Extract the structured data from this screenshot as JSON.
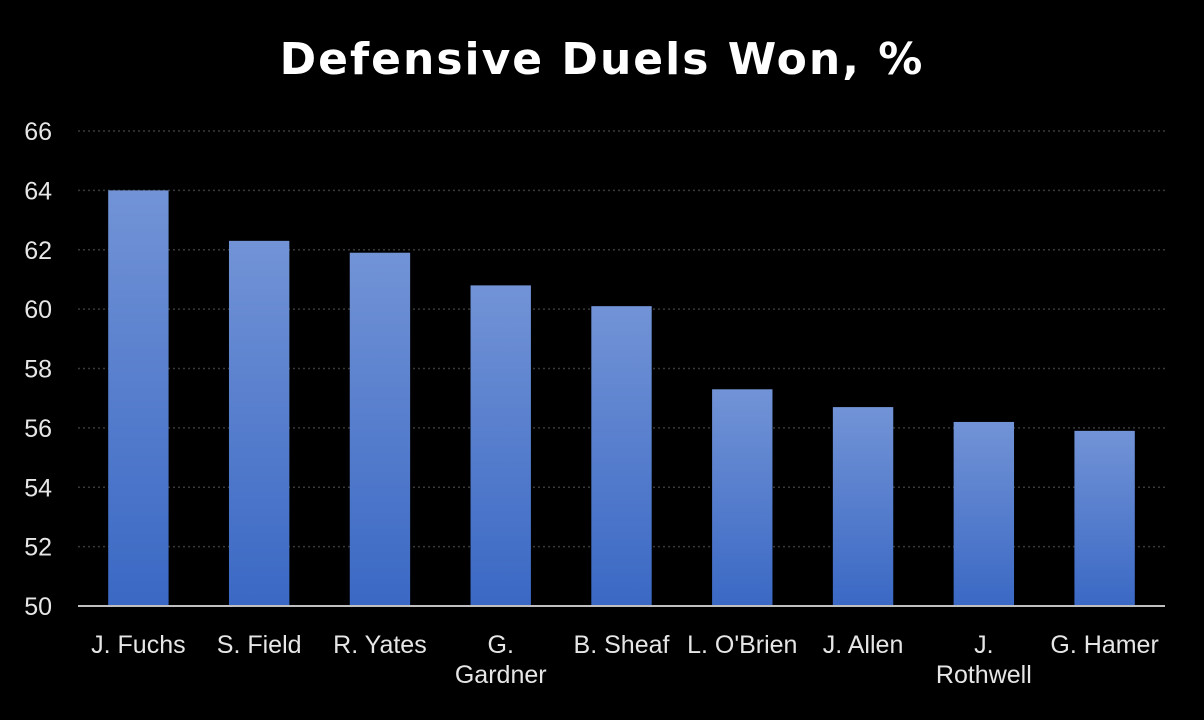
{
  "chart_data": {
    "type": "bar",
    "title": "Defensive Duels Won, %",
    "xlabel": "",
    "ylabel": "",
    "categories": [
      "J. Fuchs",
      "S. Field",
      "R. Yates",
      "G. Gardner",
      "B. Sheaf",
      "L. O'Brien",
      "J. Allen",
      "J. Rothwell",
      "G. Hamer"
    ],
    "category_lines": [
      [
        "J. Fuchs"
      ],
      [
        "S. Field"
      ],
      [
        "R. Yates"
      ],
      [
        "G.",
        "Gardner"
      ],
      [
        "B. Sheaf"
      ],
      [
        "L. O'Brien"
      ],
      [
        "J. Allen"
      ],
      [
        "J.",
        "Rothwell"
      ],
      [
        "G. Hamer"
      ]
    ],
    "values": [
      64.0,
      62.3,
      61.9,
      60.8,
      60.1,
      57.3,
      56.7,
      56.2,
      55.9
    ],
    "ylim": [
      50,
      66
    ],
    "yticks": [
      "50",
      "52",
      "54",
      "56",
      "58",
      "60",
      "62",
      "64",
      "66"
    ],
    "grid": true,
    "legend": "none",
    "colors": {
      "background": "#000000",
      "bar_top": "#7293d6",
      "bar_bottom": "#3a68c4",
      "grid": "#3a3a3a",
      "axis": "#bfbfbf",
      "text": "#ffffff"
    }
  }
}
